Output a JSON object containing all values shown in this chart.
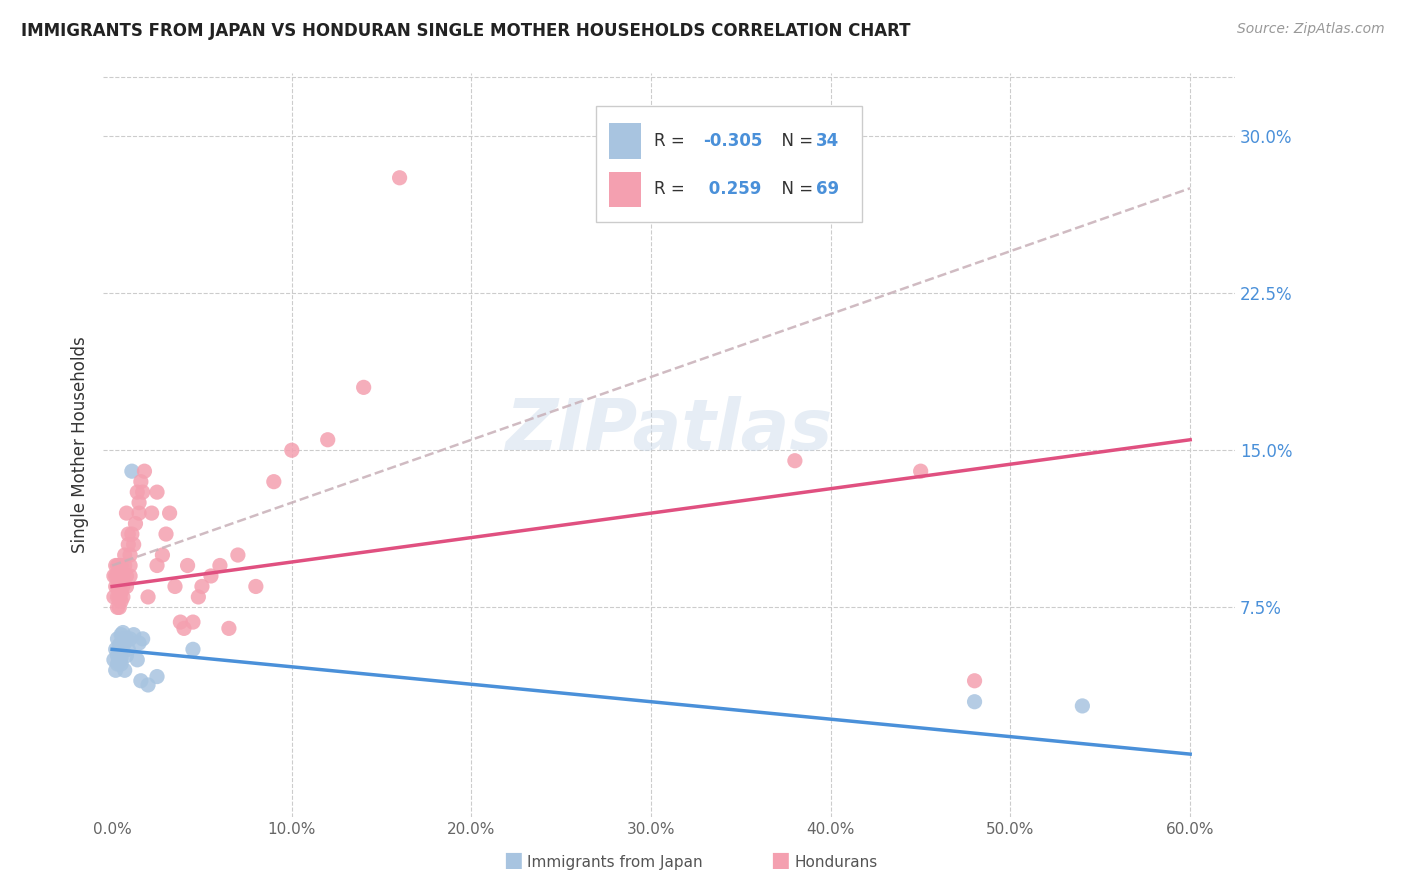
{
  "title": "IMMIGRANTS FROM JAPAN VS HONDURAN SINGLE MOTHER HOUSEHOLDS CORRELATION CHART",
  "source": "Source: ZipAtlas.com",
  "ylabel": "Single Mother Households",
  "color_japan": "#a8c4e0",
  "color_honduras": "#f4a0b0",
  "color_japan_line": "#4a90d9",
  "color_honduras_line": "#e05080",
  "color_dashed": "#c8b0b8",
  "watermark": "ZIPatlas",
  "background_color": "#ffffff",
  "japan_x": [
    0.001,
    0.002,
    0.002,
    0.003,
    0.003,
    0.003,
    0.004,
    0.004,
    0.004,
    0.004,
    0.005,
    0.005,
    0.005,
    0.005,
    0.005,
    0.006,
    0.006,
    0.007,
    0.007,
    0.008,
    0.008,
    0.009,
    0.01,
    0.011,
    0.012,
    0.014,
    0.015,
    0.016,
    0.017,
    0.02,
    0.025,
    0.045,
    0.48,
    0.54
  ],
  "japan_y": [
    0.05,
    0.055,
    0.045,
    0.06,
    0.048,
    0.052,
    0.053,
    0.057,
    0.05,
    0.049,
    0.062,
    0.058,
    0.055,
    0.051,
    0.048,
    0.06,
    0.063,
    0.058,
    0.045,
    0.06,
    0.052,
    0.055,
    0.06,
    0.14,
    0.062,
    0.05,
    0.058,
    0.04,
    0.06,
    0.038,
    0.042,
    0.055,
    0.03,
    0.028
  ],
  "honduras_x": [
    0.001,
    0.001,
    0.002,
    0.002,
    0.002,
    0.003,
    0.003,
    0.003,
    0.003,
    0.003,
    0.004,
    0.004,
    0.004,
    0.004,
    0.004,
    0.005,
    0.005,
    0.005,
    0.005,
    0.005,
    0.006,
    0.006,
    0.006,
    0.007,
    0.007,
    0.008,
    0.008,
    0.008,
    0.009,
    0.009,
    0.01,
    0.01,
    0.01,
    0.011,
    0.012,
    0.013,
    0.014,
    0.015,
    0.015,
    0.016,
    0.017,
    0.018,
    0.02,
    0.022,
    0.025,
    0.025,
    0.028,
    0.03,
    0.032,
    0.035,
    0.038,
    0.04,
    0.042,
    0.045,
    0.048,
    0.05,
    0.055,
    0.06,
    0.065,
    0.07,
    0.08,
    0.09,
    0.1,
    0.12,
    0.14,
    0.16,
    0.38,
    0.45,
    0.48
  ],
  "honduras_y": [
    0.08,
    0.09,
    0.085,
    0.09,
    0.095,
    0.075,
    0.08,
    0.085,
    0.09,
    0.095,
    0.075,
    0.08,
    0.085,
    0.088,
    0.095,
    0.078,
    0.082,
    0.087,
    0.09,
    0.095,
    0.08,
    0.085,
    0.09,
    0.095,
    0.1,
    0.085,
    0.09,
    0.12,
    0.105,
    0.11,
    0.09,
    0.095,
    0.1,
    0.11,
    0.105,
    0.115,
    0.13,
    0.12,
    0.125,
    0.135,
    0.13,
    0.14,
    0.08,
    0.12,
    0.13,
    0.095,
    0.1,
    0.11,
    0.12,
    0.085,
    0.068,
    0.065,
    0.095,
    0.068,
    0.08,
    0.085,
    0.09,
    0.095,
    0.065,
    0.1,
    0.085,
    0.135,
    0.15,
    0.155,
    0.18,
    0.28,
    0.145,
    0.14,
    0.04
  ],
  "japan_line_start_y": 0.055,
  "japan_line_end_y": 0.005,
  "honduras_line_start_y": 0.085,
  "honduras_line_end_y": 0.155,
  "dashed_line_start_y": 0.095,
  "dashed_line_end_y": 0.275,
  "xlim_min": -0.005,
  "xlim_max": 0.625,
  "ylim_min": -0.025,
  "ylim_max": 0.33,
  "ytick_vals": [
    0.075,
    0.15,
    0.225,
    0.3
  ],
  "ytick_labels": [
    "7.5%",
    "15.0%",
    "22.5%",
    "30.0%"
  ],
  "xtick_vals": [
    0.0,
    0.1,
    0.2,
    0.3,
    0.4,
    0.5,
    0.6
  ],
  "xtick_labels": [
    "0.0%",
    "10.0%",
    "20.0%",
    "30.0%",
    "40.0%",
    "50.0%",
    "60.0%"
  ]
}
